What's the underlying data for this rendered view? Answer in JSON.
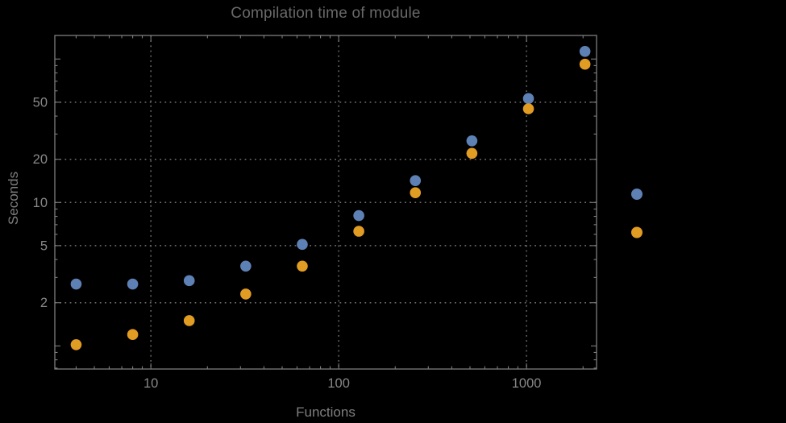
{
  "page": {
    "background": "#000000"
  },
  "colors": {
    "background": "#000000",
    "frame": "#7d7d7d",
    "grid": "#6f6f6f",
    "tick_labels": "#878787",
    "title": "#696969",
    "axis_labels": "#7f7f7f",
    "series_blue": "#5E81B5",
    "series_orange": "#E19C24"
  },
  "chart_data": {
    "type": "scatter",
    "title": "Compilation time of module",
    "xlabel": "Functions",
    "ylabel": "Seconds",
    "x_scale": "log",
    "y_scale": "log",
    "xlim": [
      3.08,
      2360
    ],
    "ylim": [
      0.69,
      146
    ],
    "x_ticks_labeled": [
      10,
      100,
      1000
    ],
    "y_ticks_labeled": [
      2,
      5,
      10,
      20,
      50
    ],
    "x_ticks_major_unlabeled": [],
    "y_ticks_major_unlabeled": [
      1,
      100
    ],
    "grid": "dotted lines at labeled ticks only",
    "marker": {
      "shape": "circle",
      "radius_px": 6.8
    },
    "x": [
      4,
      8,
      16,
      32,
      64,
      128,
      256,
      512,
      1024,
      2048
    ],
    "series": [
      {
        "name": "series-blue",
        "color": "#5E81B5",
        "values": [
          2.7,
          2.7,
          2.85,
          3.6,
          5.1,
          8.1,
          14.2,
          26.9,
          53,
          113
        ]
      },
      {
        "name": "series-orange",
        "color": "#E19C24",
        "values": [
          1.02,
          1.2,
          1.5,
          2.3,
          3.6,
          6.3,
          11.7,
          22,
          45,
          92
        ]
      }
    ],
    "legend": {
      "position": "outside-right",
      "labels_visible": false,
      "entries": [
        {
          "label": "",
          "color": "#5E81B5"
        },
        {
          "label": "",
          "color": "#E19C24"
        }
      ]
    }
  }
}
